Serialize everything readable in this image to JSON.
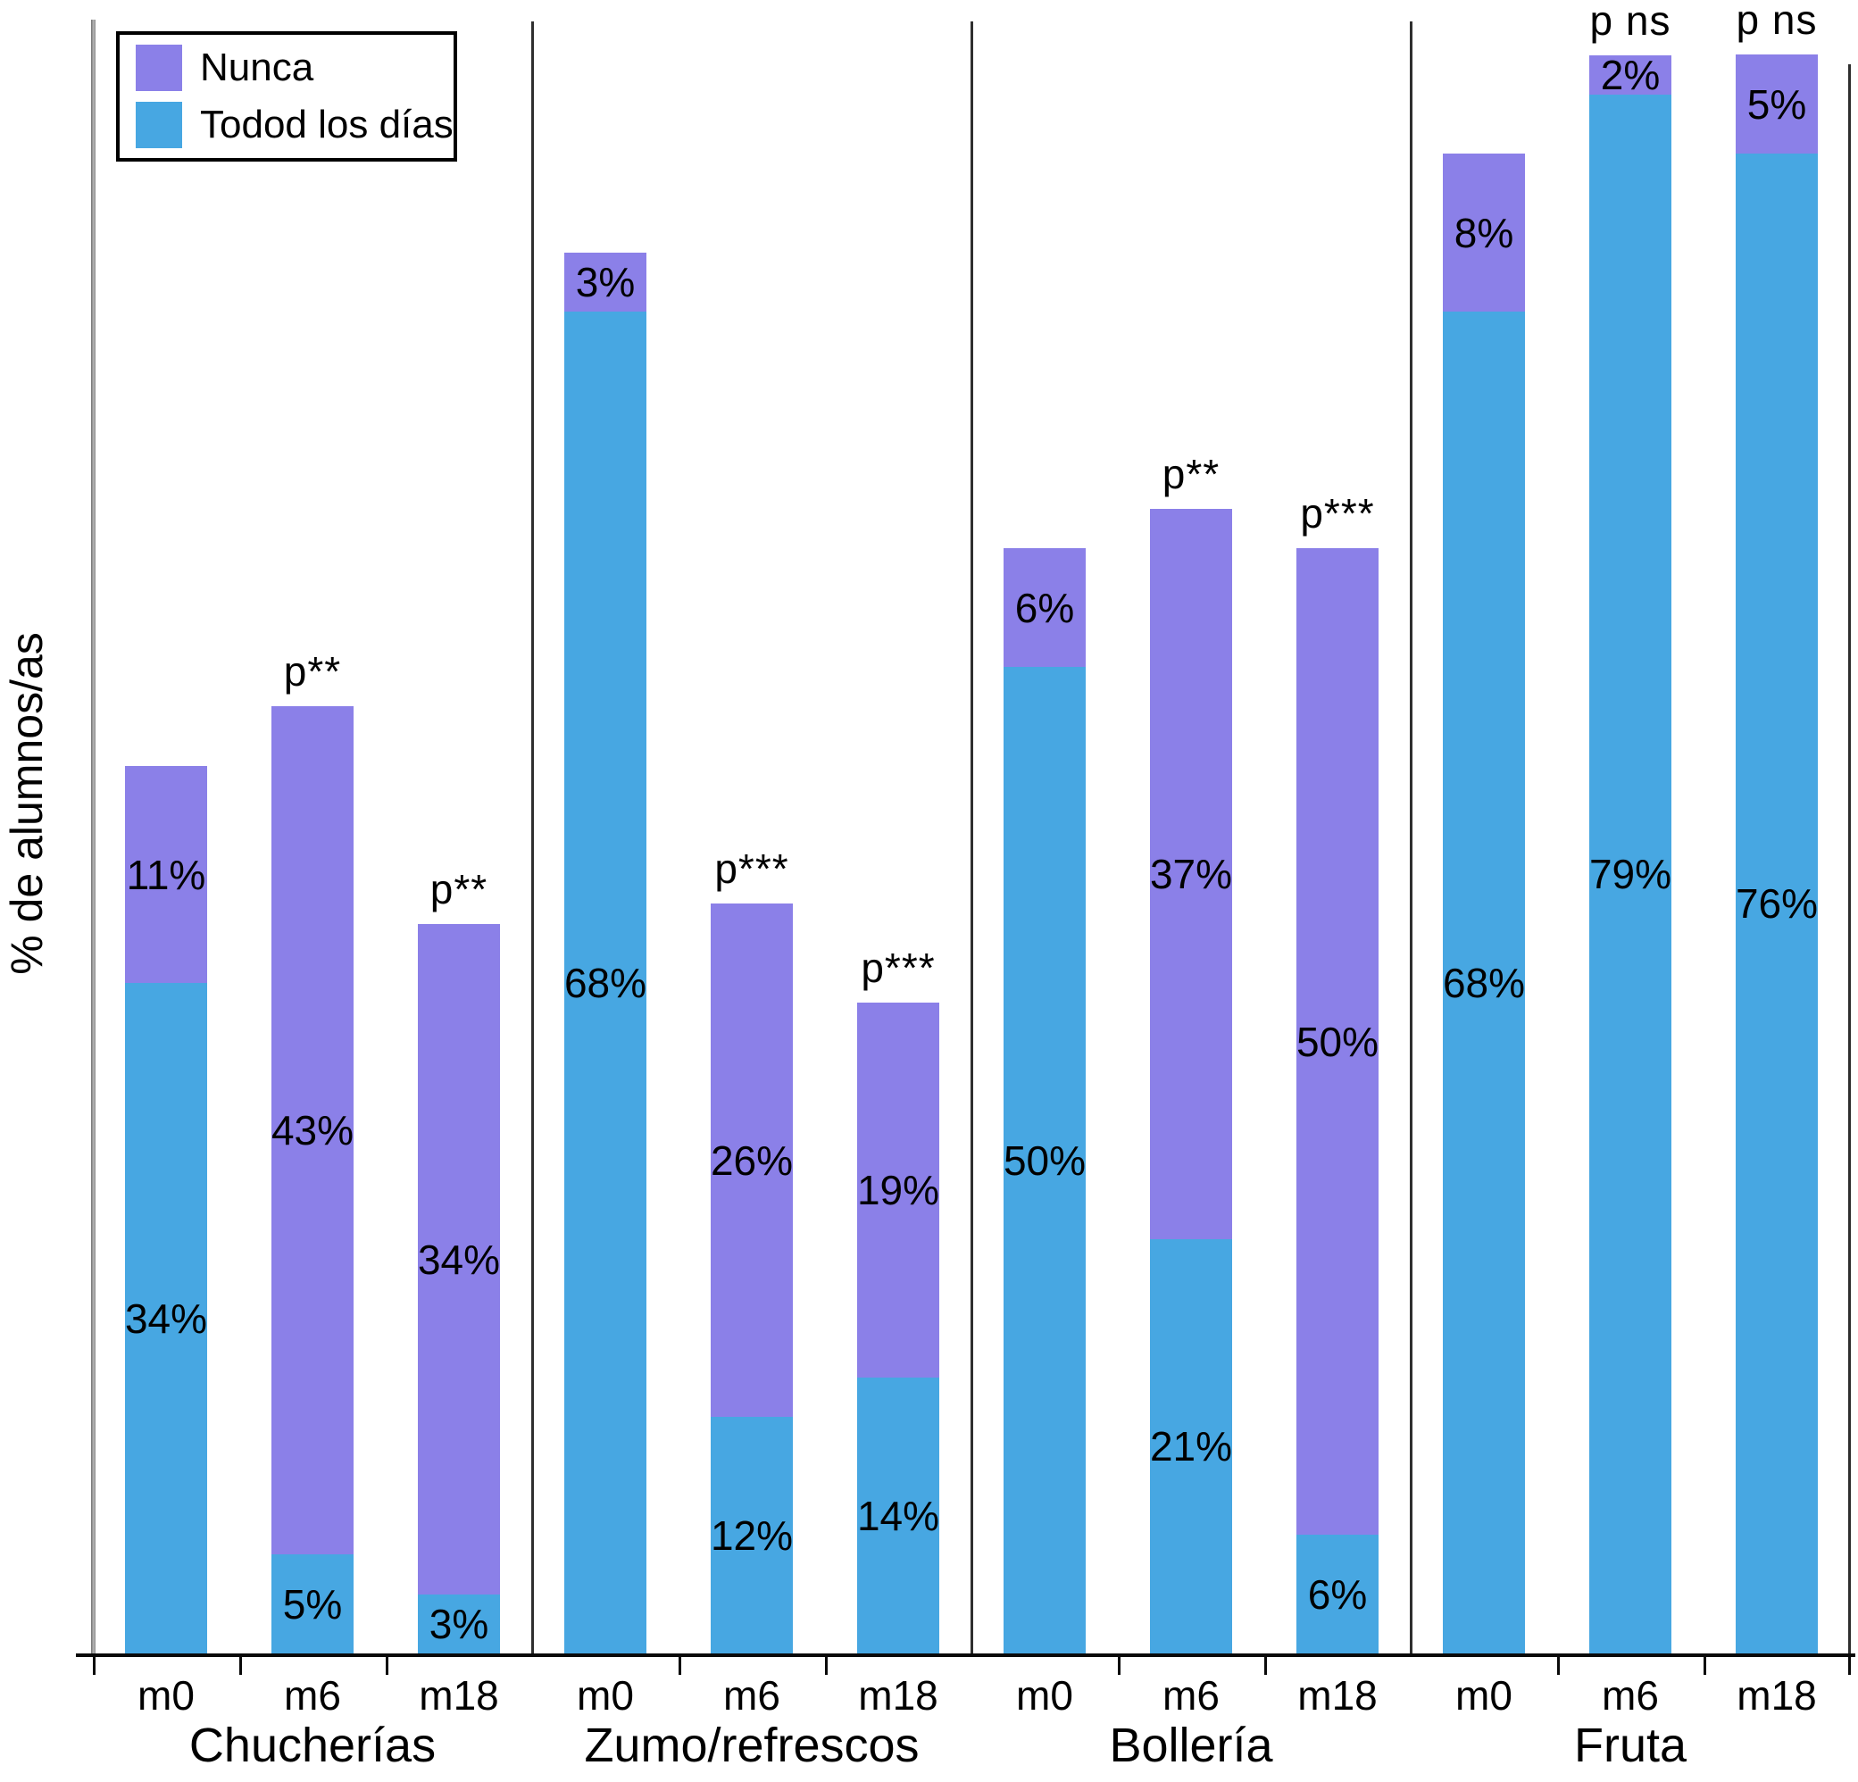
{
  "figure": {
    "ylabel": "% de alumnos/as",
    "background": "#ffffff"
  },
  "legend": {
    "items": [
      {
        "label": "Nunca",
        "color": "#8b80e8"
      },
      {
        "label": "Todod los días",
        "color": "#47a7e2"
      }
    ]
  },
  "chart_data": {
    "type": "bar",
    "stacked": true,
    "orientation": "vertical",
    "title": "",
    "xlabel": "",
    "ylabel": "% de alumnos/as",
    "unit": "%",
    "yaxis": {
      "tick_labels_visible": false,
      "implied_range": [
        0,
        83
      ]
    },
    "legend_position": "top-left",
    "categories": [
      "m0",
      "m6",
      "m18"
    ],
    "series_names": [
      "Todod los días",
      "Nunca"
    ],
    "colors": {
      "Todod los días": "#47a7e2",
      "Nunca": "#8b80e8"
    },
    "groups": [
      {
        "label": "Chucherías",
        "bars": [
          {
            "category": "m0",
            "todos_los_dias": 34,
            "nunca": 11,
            "p_annotation": null
          },
          {
            "category": "m6",
            "todos_los_dias": 5,
            "nunca": 43,
            "p_annotation": "p**"
          },
          {
            "category": "m18",
            "todos_los_dias": 3,
            "nunca": 34,
            "p_annotation": "p**"
          }
        ]
      },
      {
        "label": "Zumo/refrescos",
        "bars": [
          {
            "category": "m0",
            "todos_los_dias": 68,
            "nunca": 3,
            "p_annotation": null
          },
          {
            "category": "m6",
            "todos_los_dias": 12,
            "nunca": 26,
            "p_annotation": "p***"
          },
          {
            "category": "m18",
            "todos_los_dias": 14,
            "nunca": 19,
            "p_annotation": "p***"
          }
        ]
      },
      {
        "label": "Bollería",
        "bars": [
          {
            "category": "m0",
            "todos_los_dias": 50,
            "nunca": 6,
            "p_annotation": null
          },
          {
            "category": "m6",
            "todos_los_dias": 21,
            "nunca": 37,
            "p_annotation": "p**"
          },
          {
            "category": "m18",
            "todos_los_dias": 6,
            "nunca": 50,
            "p_annotation": "p***"
          }
        ]
      },
      {
        "label": "Fruta",
        "bars": [
          {
            "category": "m0",
            "todos_los_dias": 68,
            "nunca": 8,
            "p_annotation": null
          },
          {
            "category": "m6",
            "todos_los_dias": 79,
            "nunca": 2,
            "p_annotation": "p ns"
          },
          {
            "category": "m18",
            "todos_los_dias": 76,
            "nunca": 5,
            "p_annotation": "p ns"
          }
        ]
      }
    ]
  }
}
